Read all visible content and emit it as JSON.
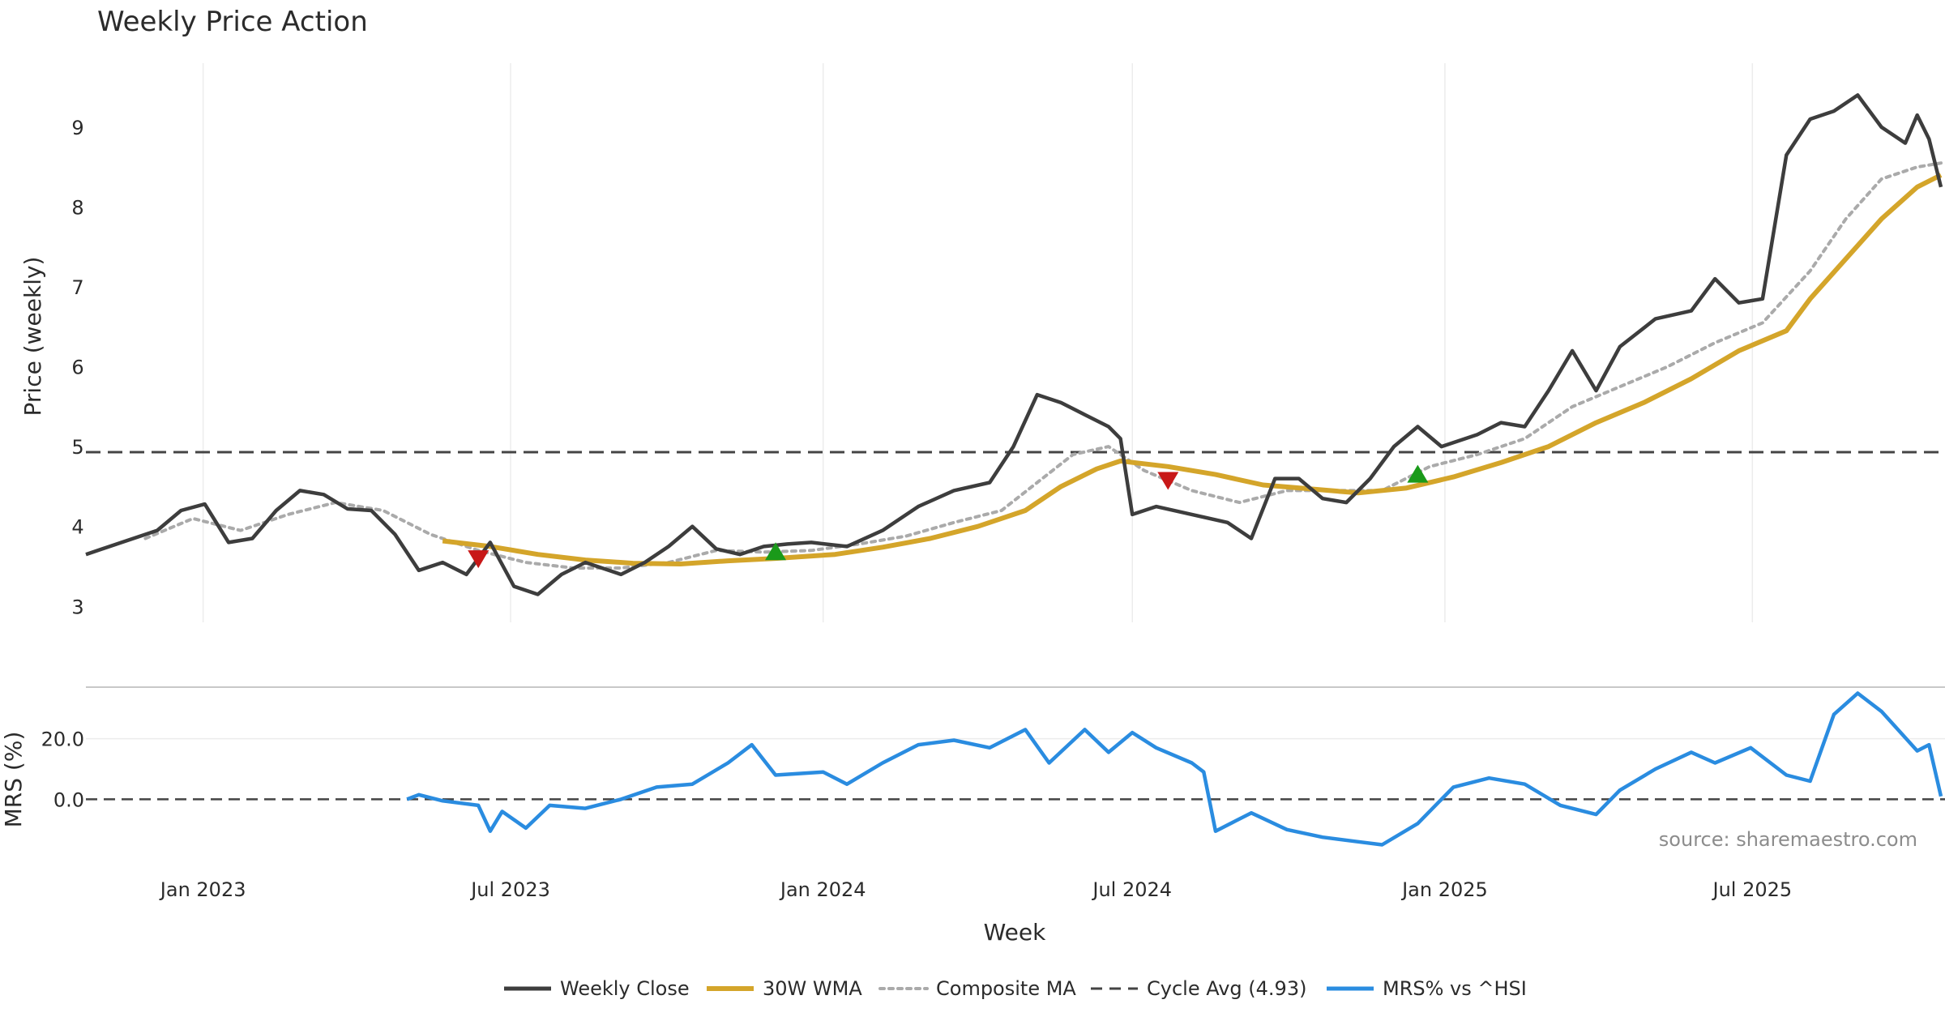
{
  "chart_data": {
    "type": "line",
    "title": "Weekly Price Action",
    "xlabel": "Week",
    "ylabel_price": "Price (weekly)",
    "ylabel_mrs": "MRS (%)",
    "source": "source: sharemaestro.com",
    "x_ticks": [
      "Jan 2023",
      "Jul 2023",
      "Jan 2024",
      "Jul 2024",
      "Jan 2025",
      "Jul 2025"
    ],
    "y_ticks_price": [
      "3",
      "4",
      "5",
      "6",
      "7",
      "8",
      "9"
    ],
    "y_ticks_mrs": [
      "0.0",
      "20.0"
    ],
    "price_ylim": [
      2.8,
      9.8
    ],
    "mrs_ylim": [
      -17,
      37
    ],
    "x_range": [
      "2022-10-24",
      "2025-10-20"
    ],
    "grid": "vertical",
    "legend_position": "bottom-center",
    "cycle_avg": 4.93,
    "colors": {
      "weekly_close": "#3d3d3d",
      "wma": "#d4a52a",
      "composite": "#aaaaaa",
      "cycle": "#444444",
      "mrs": "#2a8ce0",
      "buy": "#1a9a1a",
      "sell": "#c81818"
    },
    "legend": [
      {
        "key": "weekly_close",
        "label": "Weekly Close",
        "style": "solid-dark"
      },
      {
        "key": "wma",
        "label": "30W WMA",
        "style": "solid-gold"
      },
      {
        "key": "composite",
        "label": "Composite MA",
        "style": "dotted-grey"
      },
      {
        "key": "cycle",
        "label": "Cycle Avg (4.93)",
        "style": "dashed-dark"
      },
      {
        "key": "mrs",
        "label": "MRS% vs ^HSI",
        "style": "solid-blue"
      }
    ],
    "series": [
      {
        "key": "weekly_close",
        "name": "Weekly Close",
        "points": [
          [
            "2022-10-24",
            3.65
          ],
          [
            "2022-11-14",
            3.8
          ],
          [
            "2022-12-05",
            3.95
          ],
          [
            "2022-12-19",
            4.2
          ],
          [
            "2023-01-02",
            4.28
          ],
          [
            "2023-01-16",
            3.8
          ],
          [
            "2023-01-30",
            3.85
          ],
          [
            "2023-02-13",
            4.2
          ],
          [
            "2023-02-27",
            4.45
          ],
          [
            "2023-03-13",
            4.4
          ],
          [
            "2023-03-27",
            4.22
          ],
          [
            "2023-04-10",
            4.2
          ],
          [
            "2023-04-24",
            3.9
          ],
          [
            "2023-05-08",
            3.45
          ],
          [
            "2023-05-22",
            3.55
          ],
          [
            "2023-06-05",
            3.4
          ],
          [
            "2023-06-19",
            3.8
          ],
          [
            "2023-07-03",
            3.25
          ],
          [
            "2023-07-17",
            3.15
          ],
          [
            "2023-07-31",
            3.4
          ],
          [
            "2023-08-14",
            3.55
          ],
          [
            "2023-09-04",
            3.4
          ],
          [
            "2023-09-18",
            3.55
          ],
          [
            "2023-10-02",
            3.75
          ],
          [
            "2023-10-16",
            4.0
          ],
          [
            "2023-10-30",
            3.72
          ],
          [
            "2023-11-13",
            3.65
          ],
          [
            "2023-11-27",
            3.75
          ],
          [
            "2023-12-11",
            3.78
          ],
          [
            "2023-12-25",
            3.8
          ],
          [
            "2024-01-15",
            3.75
          ],
          [
            "2024-02-05",
            3.95
          ],
          [
            "2024-02-26",
            4.25
          ],
          [
            "2024-03-18",
            4.45
          ],
          [
            "2024-04-08",
            4.55
          ],
          [
            "2024-04-22",
            5.0
          ],
          [
            "2024-05-06",
            5.65
          ],
          [
            "2024-05-20",
            5.55
          ],
          [
            "2024-06-03",
            5.4
          ],
          [
            "2024-06-17",
            5.25
          ],
          [
            "2024-06-24",
            5.1
          ],
          [
            "2024-07-01",
            4.15
          ],
          [
            "2024-07-15",
            4.25
          ],
          [
            "2024-08-05",
            4.15
          ],
          [
            "2024-08-26",
            4.05
          ],
          [
            "2024-09-09",
            3.85
          ],
          [
            "2024-09-23",
            4.6
          ],
          [
            "2024-10-07",
            4.6
          ],
          [
            "2024-10-21",
            4.35
          ],
          [
            "2024-11-04",
            4.3
          ],
          [
            "2024-11-18",
            4.6
          ],
          [
            "2024-12-02",
            5.0
          ],
          [
            "2024-12-16",
            5.25
          ],
          [
            "2024-12-30",
            5.0
          ],
          [
            "2025-01-20",
            5.15
          ],
          [
            "2025-02-03",
            5.3
          ],
          [
            "2025-02-17",
            5.25
          ],
          [
            "2025-03-03",
            5.7
          ],
          [
            "2025-03-17",
            6.2
          ],
          [
            "2025-03-31",
            5.7
          ],
          [
            "2025-04-14",
            6.25
          ],
          [
            "2025-05-05",
            6.6
          ],
          [
            "2025-05-26",
            6.7
          ],
          [
            "2025-06-09",
            7.1
          ],
          [
            "2025-06-23",
            6.8
          ],
          [
            "2025-07-07",
            6.85
          ],
          [
            "2025-07-21",
            8.65
          ],
          [
            "2025-08-04",
            9.1
          ],
          [
            "2025-08-18",
            9.2
          ],
          [
            "2025-09-01",
            9.4
          ],
          [
            "2025-09-15",
            9.0
          ],
          [
            "2025-09-29",
            8.8
          ],
          [
            "2025-10-06",
            9.15
          ],
          [
            "2025-10-13",
            8.85
          ],
          [
            "2025-10-20",
            8.25
          ]
        ]
      },
      {
        "key": "wma",
        "name": "30W WMA",
        "points": [
          [
            "2023-05-22",
            3.82
          ],
          [
            "2023-06-19",
            3.75
          ],
          [
            "2023-07-17",
            3.65
          ],
          [
            "2023-08-14",
            3.58
          ],
          [
            "2023-09-11",
            3.54
          ],
          [
            "2023-10-09",
            3.53
          ],
          [
            "2023-11-06",
            3.57
          ],
          [
            "2023-12-04",
            3.6
          ],
          [
            "2024-01-08",
            3.65
          ],
          [
            "2024-02-05",
            3.74
          ],
          [
            "2024-03-04",
            3.85
          ],
          [
            "2024-04-01",
            4.0
          ],
          [
            "2024-04-29",
            4.2
          ],
          [
            "2024-05-20",
            4.5
          ],
          [
            "2024-06-10",
            4.72
          ],
          [
            "2024-06-24",
            4.82
          ],
          [
            "2024-07-22",
            4.75
          ],
          [
            "2024-08-19",
            4.65
          ],
          [
            "2024-09-16",
            4.52
          ],
          [
            "2024-10-14",
            4.47
          ],
          [
            "2024-11-11",
            4.42
          ],
          [
            "2024-12-09",
            4.48
          ],
          [
            "2025-01-06",
            4.62
          ],
          [
            "2025-02-03",
            4.8
          ],
          [
            "2025-03-03",
            5.0
          ],
          [
            "2025-03-31",
            5.3
          ],
          [
            "2025-04-28",
            5.55
          ],
          [
            "2025-05-26",
            5.85
          ],
          [
            "2025-06-23",
            6.2
          ],
          [
            "2025-07-21",
            6.45
          ],
          [
            "2025-08-04",
            6.85
          ],
          [
            "2025-08-25",
            7.35
          ],
          [
            "2025-09-15",
            7.85
          ],
          [
            "2025-10-06",
            8.25
          ],
          [
            "2025-10-20",
            8.4
          ]
        ]
      },
      {
        "key": "composite",
        "name": "Composite MA",
        "points": [
          [
            "2022-11-28",
            3.85
          ],
          [
            "2022-12-26",
            4.1
          ],
          [
            "2023-01-23",
            3.95
          ],
          [
            "2023-02-20",
            4.15
          ],
          [
            "2023-03-20",
            4.3
          ],
          [
            "2023-04-17",
            4.2
          ],
          [
            "2023-05-15",
            3.9
          ],
          [
            "2023-06-12",
            3.7
          ],
          [
            "2023-07-10",
            3.55
          ],
          [
            "2023-08-07",
            3.48
          ],
          [
            "2023-09-04",
            3.48
          ],
          [
            "2023-10-02",
            3.55
          ],
          [
            "2023-10-30",
            3.7
          ],
          [
            "2023-11-27",
            3.68
          ],
          [
            "2023-12-25",
            3.7
          ],
          [
            "2024-01-22",
            3.78
          ],
          [
            "2024-02-19",
            3.88
          ],
          [
            "2024-03-18",
            4.05
          ],
          [
            "2024-04-15",
            4.2
          ],
          [
            "2024-05-06",
            4.55
          ],
          [
            "2024-05-27",
            4.9
          ],
          [
            "2024-06-17",
            5.0
          ],
          [
            "2024-07-08",
            4.7
          ],
          [
            "2024-08-05",
            4.45
          ],
          [
            "2024-09-02",
            4.3
          ],
          [
            "2024-09-30",
            4.45
          ],
          [
            "2024-10-28",
            4.45
          ],
          [
            "2024-11-25",
            4.45
          ],
          [
            "2024-12-23",
            4.75
          ],
          [
            "2025-01-20",
            4.9
          ],
          [
            "2025-02-17",
            5.1
          ],
          [
            "2025-03-17",
            5.5
          ],
          [
            "2025-04-14",
            5.75
          ],
          [
            "2025-05-12",
            6.0
          ],
          [
            "2025-06-09",
            6.3
          ],
          [
            "2025-07-07",
            6.55
          ],
          [
            "2025-08-04",
            7.2
          ],
          [
            "2025-08-25",
            7.85
          ],
          [
            "2025-09-15",
            8.35
          ],
          [
            "2025-10-06",
            8.5
          ],
          [
            "2025-10-20",
            8.55
          ]
        ]
      },
      {
        "key": "mrs",
        "name": "MRS% vs ^HSI",
        "points": [
          [
            "2023-05-01",
            0.0
          ],
          [
            "2023-05-08",
            1.5
          ],
          [
            "2023-05-22",
            -0.5
          ],
          [
            "2023-06-12",
            -2.0
          ],
          [
            "2023-06-19",
            -10.5
          ],
          [
            "2023-06-26",
            -4.0
          ],
          [
            "2023-07-10",
            -9.5
          ],
          [
            "2023-07-24",
            -2.0
          ],
          [
            "2023-08-14",
            -3.0
          ],
          [
            "2023-09-04",
            0.0
          ],
          [
            "2023-09-25",
            4.0
          ],
          [
            "2023-10-16",
            5.0
          ],
          [
            "2023-11-06",
            12.0
          ],
          [
            "2023-11-20",
            18.0
          ],
          [
            "2023-12-04",
            8.0
          ],
          [
            "2024-01-01",
            9.0
          ],
          [
            "2024-01-15",
            5.0
          ],
          [
            "2024-02-05",
            12.0
          ],
          [
            "2024-02-26",
            18.0
          ],
          [
            "2024-03-18",
            19.5
          ],
          [
            "2024-04-08",
            17.0
          ],
          [
            "2024-04-29",
            23.0
          ],
          [
            "2024-05-13",
            12.0
          ],
          [
            "2024-06-03",
            23.0
          ],
          [
            "2024-06-17",
            15.5
          ],
          [
            "2024-07-01",
            22.0
          ],
          [
            "2024-07-15",
            17.0
          ],
          [
            "2024-08-05",
            12.0
          ],
          [
            "2024-08-12",
            9.0
          ],
          [
            "2024-08-19",
            -10.5
          ],
          [
            "2024-09-09",
            -4.5
          ],
          [
            "2024-09-30",
            -10.0
          ],
          [
            "2024-10-21",
            -12.5
          ],
          [
            "2024-11-11",
            -14.0
          ],
          [
            "2024-11-25",
            -15.0
          ],
          [
            "2024-12-16",
            -8.0
          ],
          [
            "2025-01-06",
            4.0
          ],
          [
            "2025-01-27",
            7.0
          ],
          [
            "2025-02-17",
            5.0
          ],
          [
            "2025-03-10",
            -2.0
          ],
          [
            "2025-03-31",
            -5.0
          ],
          [
            "2025-04-14",
            3.0
          ],
          [
            "2025-05-05",
            10.0
          ],
          [
            "2025-05-26",
            15.5
          ],
          [
            "2025-06-09",
            12.0
          ],
          [
            "2025-06-30",
            17.0
          ],
          [
            "2025-07-21",
            8.0
          ],
          [
            "2025-08-04",
            6.0
          ],
          [
            "2025-08-18",
            28.0
          ],
          [
            "2025-09-01",
            35.0
          ],
          [
            "2025-09-15",
            29.0
          ],
          [
            "2025-10-06",
            16.0
          ],
          [
            "2025-10-13",
            18.0
          ],
          [
            "2025-10-20",
            1.0
          ]
        ]
      }
    ],
    "signals": [
      {
        "type": "sell",
        "date": "2023-06-12",
        "value": 3.6
      },
      {
        "type": "buy",
        "date": "2023-12-04",
        "value": 3.68
      },
      {
        "type": "sell",
        "date": "2024-07-22",
        "value": 4.58
      },
      {
        "type": "buy",
        "date": "2024-12-16",
        "value": 4.65
      }
    ]
  }
}
